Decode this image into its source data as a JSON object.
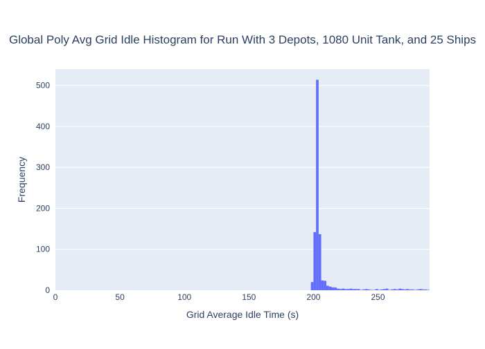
{
  "chart_data": {
    "type": "bar",
    "subtype": "histogram",
    "title": "Global Poly Avg Grid Idle Histogram for Run With 3 Depots, 1080 Unit Tank, and 25 Ships",
    "xlabel": "Grid Average Idle Time (s)",
    "ylabel": "Frequency",
    "xlim": [
      0,
      290
    ],
    "ylim": [
      0,
      540
    ],
    "xticks": [
      0,
      50,
      100,
      150,
      200,
      250
    ],
    "yticks": [
      0,
      100,
      200,
      300,
      400,
      500
    ],
    "bin_width": 2,
    "series": [
      {
        "x": [
          199,
          201,
          203,
          205,
          207,
          209,
          211,
          213,
          215,
          217,
          219,
          221,
          223,
          225,
          227,
          229,
          231,
          233,
          235,
          237,
          239,
          241,
          243,
          245,
          247,
          249,
          251,
          253,
          255,
          257,
          259,
          261,
          263,
          265,
          267,
          269,
          271,
          273,
          275,
          277,
          279,
          281,
          283,
          285,
          287,
          289
        ],
        "values": [
          20,
          142,
          514,
          137,
          24,
          23,
          11,
          9,
          7,
          7,
          4,
          3,
          4,
          3,
          3,
          4,
          3,
          3,
          3,
          1,
          2,
          3,
          2,
          1,
          1,
          3,
          1,
          2,
          3,
          4,
          1,
          2,
          3,
          2,
          4,
          3,
          2,
          3,
          2,
          2,
          1,
          2,
          3,
          2,
          2,
          1
        ]
      }
    ],
    "bar_color": "#636efa",
    "plot_background": "#e5ecf6",
    "grid": true
  }
}
